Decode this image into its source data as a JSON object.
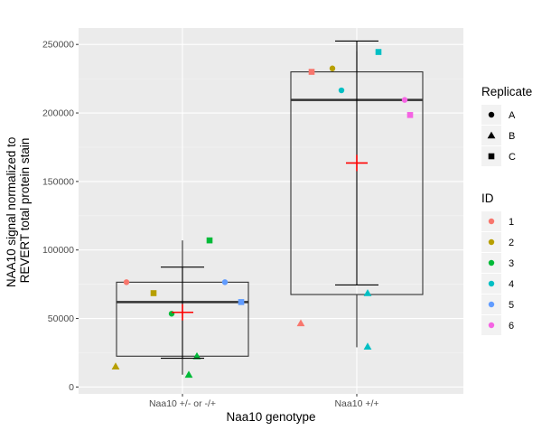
{
  "chart_data": {
    "type": "boxplot",
    "xlabel": "Naa10 genotype",
    "ylabel_lines": [
      "NAA10 signal normalized to",
      "REVERT total protein stain"
    ],
    "ylim": [
      -5000,
      262000
    ],
    "yticks": [
      0,
      50000,
      100000,
      150000,
      200000,
      250000
    ],
    "ytick_labels": [
      "0",
      "50000",
      "100000",
      "150000",
      "200000",
      "250000"
    ],
    "categories": [
      "Naa10 +/- or -/+",
      "Naa10 +/+"
    ],
    "panel_background": "#EBEBEB",
    "grid": true,
    "boxes": [
      {
        "category": "Naa10 +/- or -/+",
        "q1": 22500,
        "median": 62000,
        "q3": 76500,
        "whisker_low": 9000,
        "whisker_high": 107000
      },
      {
        "category": "Naa10 +/+",
        "q1": 67500,
        "median": 209500,
        "q3": 230000,
        "whisker_low": 29000,
        "whisker_high": 245000
      }
    ],
    "mean_markers": [
      {
        "category": "Naa10 +/- or -/+",
        "mean": 54500,
        "error_low": 21000,
        "error_high": 87500,
        "color": "#FF0000"
      },
      {
        "category": "Naa10 +/+",
        "mean": 163500,
        "error_low": 74500,
        "error_high": 252500,
        "color": "#FF0000"
      }
    ],
    "legend_replicate": {
      "title": "Replicate",
      "entries": [
        {
          "label": "A",
          "shape": "circle"
        },
        {
          "label": "B",
          "shape": "triangle"
        },
        {
          "label": "C",
          "shape": "square"
        }
      ]
    },
    "legend_id": {
      "title": "ID",
      "entries": [
        {
          "label": "1",
          "color": "#F8766D"
        },
        {
          "label": "2",
          "color": "#B79F00"
        },
        {
          "label": "3",
          "color": "#00BA38"
        },
        {
          "label": "4",
          "color": "#00BFC4"
        },
        {
          "label": "5",
          "color": "#619CFF"
        },
        {
          "label": "6",
          "color": "#F564E3"
        }
      ]
    },
    "points": [
      {
        "group": 0,
        "jitter": -0.62,
        "y": 76500,
        "id": "1",
        "replicate": "A"
      },
      {
        "group": 0,
        "jitter": -0.32,
        "y": 68500,
        "id": "2",
        "replicate": "C"
      },
      {
        "group": 0,
        "jitter": -0.74,
        "y": 15000,
        "id": "2",
        "replicate": "B"
      },
      {
        "group": 0,
        "jitter": -0.12,
        "y": 53500,
        "id": "3",
        "replicate": "A"
      },
      {
        "group": 0,
        "jitter": 0.07,
        "y": 9000,
        "id": "3",
        "replicate": "B"
      },
      {
        "group": 0,
        "jitter": 0.16,
        "y": 22500,
        "id": "3",
        "replicate": "B"
      },
      {
        "group": 0,
        "jitter": 0.3,
        "y": 107000,
        "id": "3",
        "replicate": "C"
      },
      {
        "group": 0,
        "jitter": 0.47,
        "y": 76500,
        "id": "5",
        "replicate": "A"
      },
      {
        "group": 0,
        "jitter": 0.65,
        "y": 62000,
        "id": "5",
        "replicate": "C"
      },
      {
        "group": 1,
        "jitter": -0.5,
        "y": 230000,
        "id": "1",
        "replicate": "C"
      },
      {
        "group": 1,
        "jitter": -0.62,
        "y": 46500,
        "id": "1",
        "replicate": "B"
      },
      {
        "group": 1,
        "jitter": -0.27,
        "y": 232500,
        "id": "2",
        "replicate": "A"
      },
      {
        "group": 1,
        "jitter": -0.17,
        "y": 216500,
        "id": "4",
        "replicate": "A"
      },
      {
        "group": 1,
        "jitter": 0.12,
        "y": 68500,
        "id": "4",
        "replicate": "B"
      },
      {
        "group": 1,
        "jitter": 0.12,
        "y": 29500,
        "id": "4",
        "replicate": "B"
      },
      {
        "group": 1,
        "jitter": 0.24,
        "y": 244500,
        "id": "4",
        "replicate": "C"
      },
      {
        "group": 1,
        "jitter": 0.53,
        "y": 209500,
        "id": "6",
        "replicate": "A"
      },
      {
        "group": 1,
        "jitter": 0.59,
        "y": 198500,
        "id": "6",
        "replicate": "C"
      }
    ]
  }
}
